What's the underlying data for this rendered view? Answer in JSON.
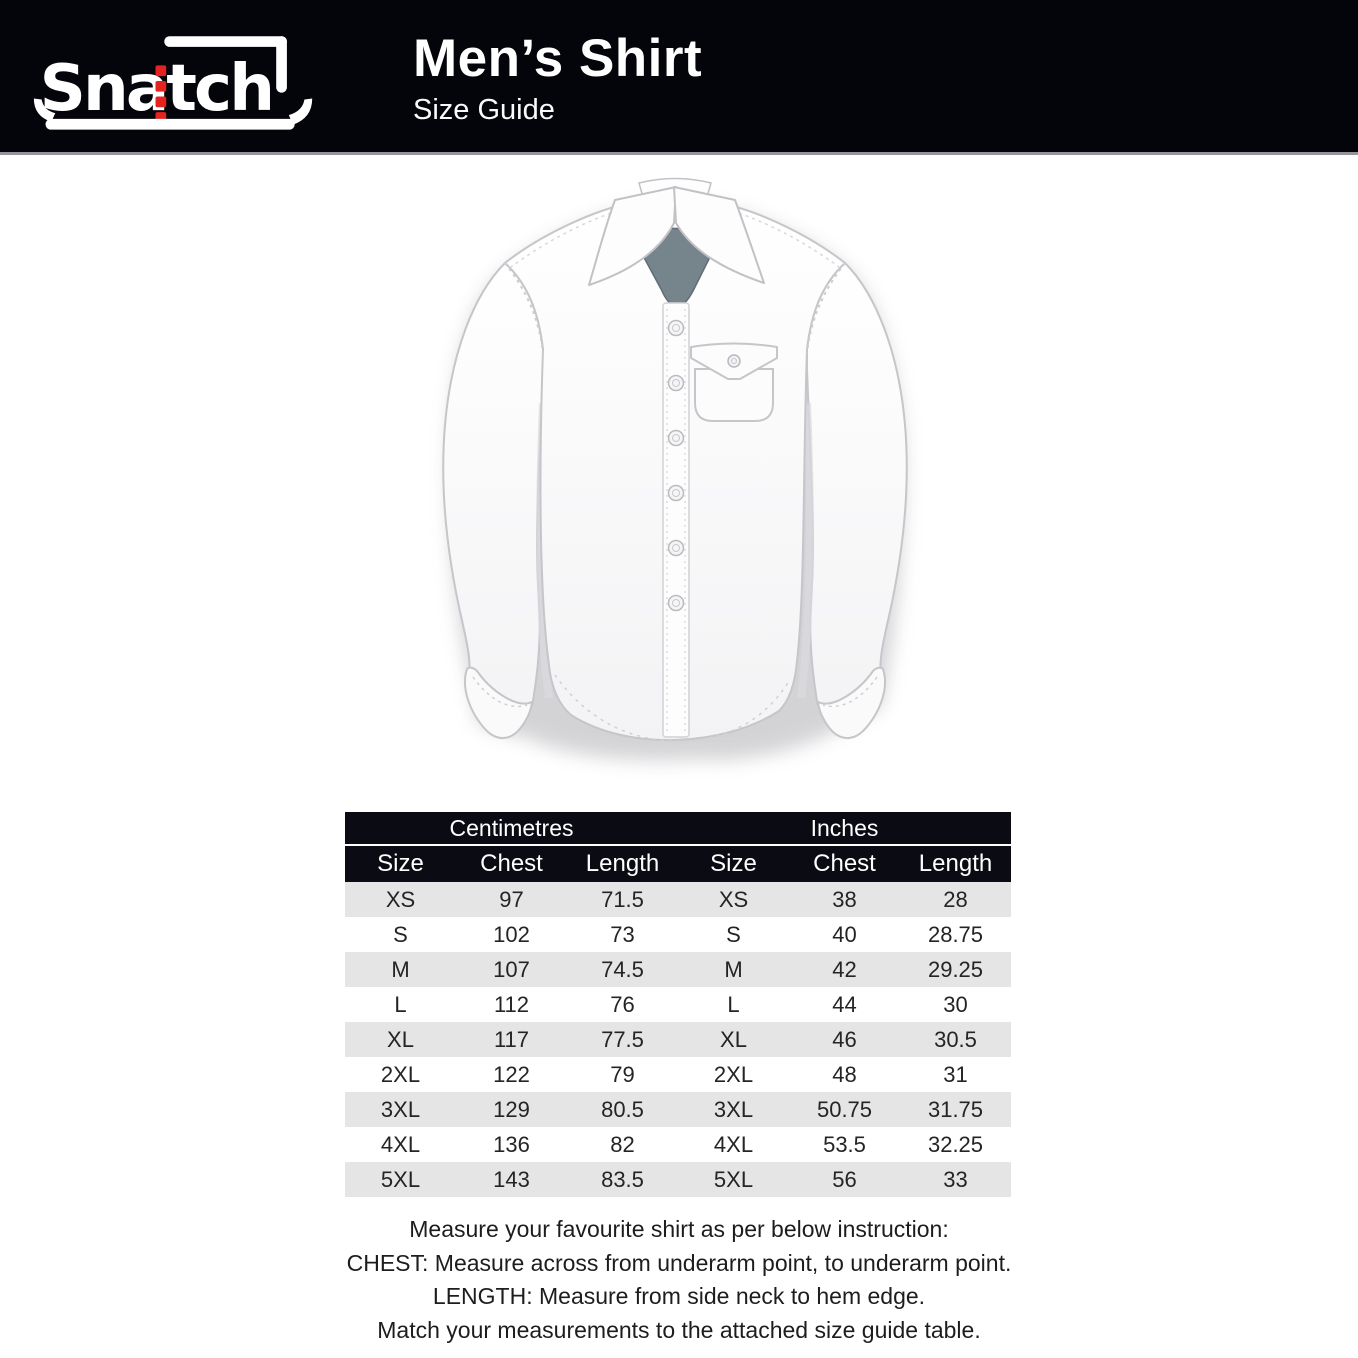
{
  "header": {
    "brand": "Snatch",
    "title": "Men’s Shirt",
    "subtitle": "Size Guide"
  },
  "shirt_illustration": {
    "description": "White long-sleeve men's dress shirt, front view, chest pocket with flap, six placket buttons, gray inner collar"
  },
  "size_table": {
    "group_headers": [
      "Centimetres",
      "Inches"
    ],
    "columns": [
      "Size",
      "Chest",
      "Length",
      "Size",
      "Chest",
      "Length"
    ],
    "rows": [
      [
        "XS",
        "97",
        "71.5",
        "XS",
        "38",
        "28"
      ],
      [
        "S",
        "102",
        "73",
        "S",
        "40",
        "28.75"
      ],
      [
        "M",
        "107",
        "74.5",
        "M",
        "42",
        "29.25"
      ],
      [
        "L",
        "112",
        "76",
        "L",
        "44",
        "30"
      ],
      [
        "XL",
        "117",
        "77.5",
        "XL",
        "46",
        "30.5"
      ],
      [
        "2XL",
        "122",
        "79",
        "2XL",
        "48",
        "31"
      ],
      [
        "3XL",
        "129",
        "80.5",
        "3XL",
        "50.75",
        "31.75"
      ],
      [
        "4XL",
        "136",
        "82",
        "4XL",
        "53.5",
        "32.25"
      ],
      [
        "5XL",
        "143",
        "83.5",
        "5XL",
        "56",
        "33"
      ]
    ]
  },
  "instructions": {
    "lines": [
      "Measure your favourite shirt as per below instruction:",
      "CHEST: Measure across from underarm point, to underarm point.",
      "LENGTH: Measure from side neck to hem edge.",
      "Match your measurements to the attached size guide table."
    ]
  },
  "colors": {
    "banner_bg": "#04040b",
    "table_header_bg": "#0b0b13",
    "row_stripe": "#e5e5e5",
    "logo_accent_red": "#e42320",
    "inner_collar_gray": "#76858b",
    "text_dark": "#1d1d1d"
  }
}
